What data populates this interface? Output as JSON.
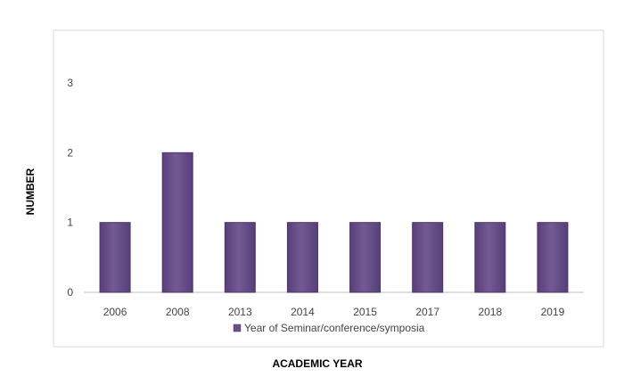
{
  "chart_data": {
    "type": "bar",
    "categories": [
      "2006",
      "2008",
      "2013",
      "2014",
      "2015",
      "2017",
      "2018",
      "2019"
    ],
    "series": [
      {
        "name": "Year of Seminar/conference/symposia",
        "values": [
          1,
          2,
          1,
          1,
          1,
          1,
          1,
          1
        ]
      }
    ],
    "xlabel": "ACADEMIC YEAR",
    "ylabel": "NUMBER",
    "ylim": [
      0,
      3
    ],
    "yticks": [
      "0",
      "1",
      "2",
      "3"
    ],
    "grid": false,
    "legend_position": "bottom",
    "colors": {
      "bar": "#6a4f8b",
      "bar_edge": "#4b3566",
      "border": "#d9d9d9",
      "axis": "#bfbfbf"
    }
  }
}
